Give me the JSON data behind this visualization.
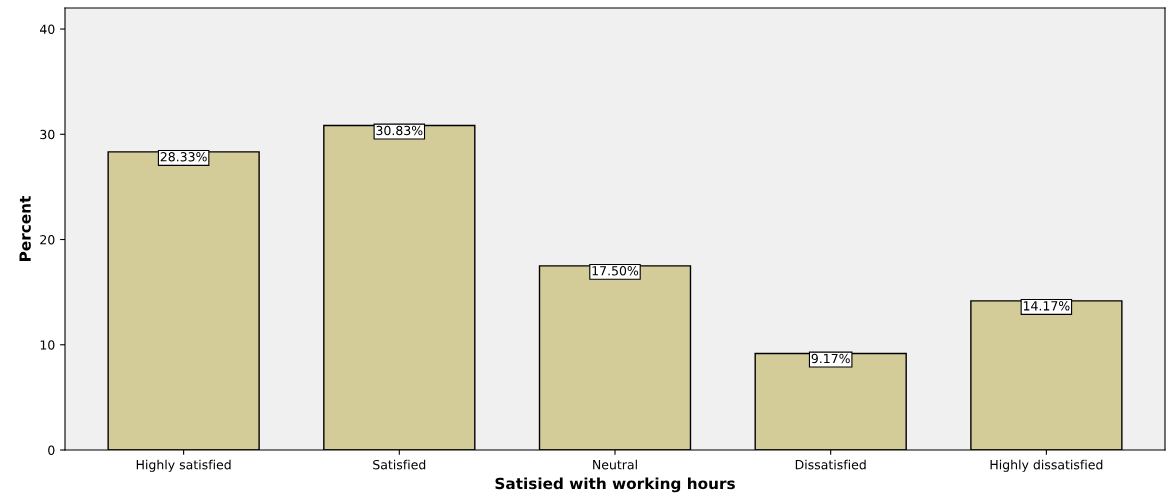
{
  "chart_data": {
    "type": "bar",
    "xlabel": "Satisied with working hours",
    "ylabel": "Percent",
    "categories": [
      "Highly satisfied",
      "Satisfied",
      "Neutral",
      "Dissatisfied",
      "Highly dissatisfied"
    ],
    "values": [
      28.33,
      30.83,
      17.5,
      9.17,
      14.17
    ],
    "value_labels": [
      "28.33%",
      "30.83%",
      "17.50%",
      "9.17%",
      "14.17%"
    ],
    "color": "#d3cc98",
    "ylim": [
      0,
      42
    ],
    "yticks": [
      0,
      10,
      20,
      30,
      40
    ],
    "grid": false,
    "legend": false
  }
}
